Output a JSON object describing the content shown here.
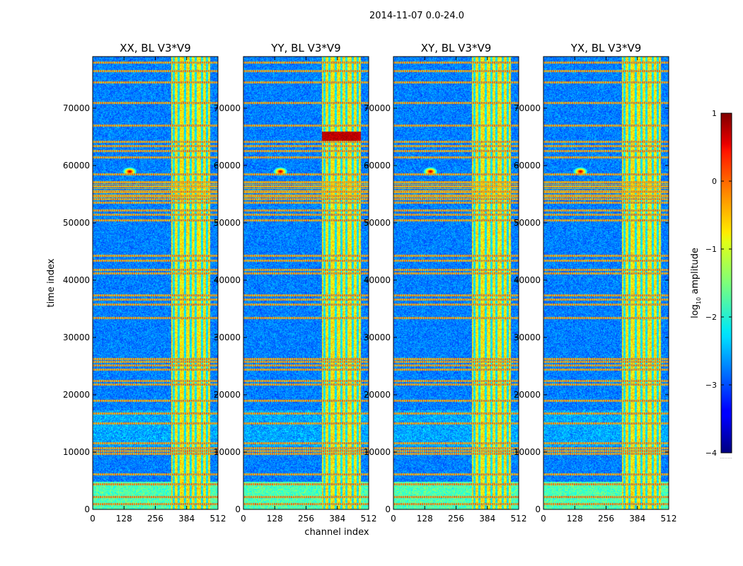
{
  "figure": {
    "suptitle": "2014-11-07 0.0-24.0"
  },
  "chart_data": {
    "type": "heatmap",
    "colormap": "jet",
    "shared_xlabel": "channel index",
    "shared_ylabel": "time index",
    "x_range": [
      0,
      512
    ],
    "y_range": [
      0,
      79000
    ],
    "x_ticks": [
      0,
      128,
      256,
      384,
      512
    ],
    "x_tick_labels": [
      "0",
      "128",
      "256",
      "384",
      "512"
    ],
    "y_ticks": [
      0,
      10000,
      20000,
      30000,
      40000,
      50000,
      60000,
      70000
    ],
    "y_tick_labels": [
      "0",
      "10000",
      "20000",
      "30000",
      "40000",
      "50000",
      "60000",
      "70000"
    ],
    "panels": [
      {
        "title": "XX, BL V3*V9",
        "baseline": "V3*V9",
        "polarization": "XX"
      },
      {
        "title": "YY, BL V3*V9",
        "baseline": "V3*V9",
        "polarization": "YY"
      },
      {
        "title": "XY, BL V3*V9",
        "baseline": "V3*V9",
        "polarization": "XY"
      },
      {
        "title": "YX, BL V3*V9",
        "baseline": "V3*V9",
        "polarization": "YX"
      }
    ],
    "colorbar": {
      "label": "log₁₀ amplitude",
      "label_base": "log",
      "label_sub": "10",
      "label_rest": " amplitude",
      "range": [
        -4,
        1
      ],
      "ticks": [
        1,
        0,
        -1,
        -2,
        -3,
        -4
      ],
      "tick_labels": [
        "1",
        "0",
        "−1",
        "−2",
        "−3",
        "−4"
      ],
      "extra_label": "........"
    },
    "features": {
      "rfi_channel_band": [
        320,
        480
      ],
      "rfi_channel_lines": [
        330,
        350,
        375,
        400,
        420,
        445,
        465
      ],
      "strong_time_rows": [
        1000,
        2200,
        4500,
        6200,
        9800,
        10300,
        10800,
        11600,
        15000,
        16800,
        19000,
        21800,
        22500,
        24500,
        25200,
        25800,
        26300,
        33500,
        35800,
        36600,
        37400,
        41200,
        41800,
        43500,
        44300,
        50500,
        51500,
        52200,
        53600,
        54200,
        54800,
        55600,
        56400,
        57200,
        58500,
        61500,
        62600,
        63500,
        64200,
        67000,
        71000,
        74500,
        76500,
        78000
      ],
      "bright_spot": {
        "channel": 150,
        "time": 59000
      }
    }
  }
}
